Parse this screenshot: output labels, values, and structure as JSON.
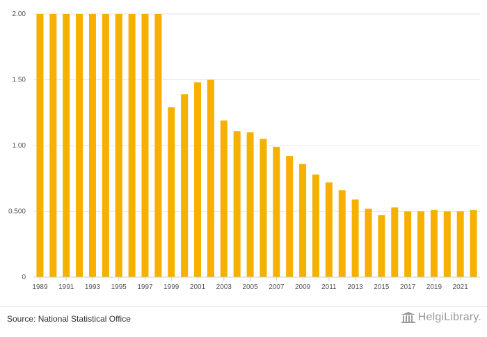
{
  "chart_data": {
    "type": "bar",
    "title": "",
    "xlabel": "",
    "ylabel": "",
    "ylim": [
      0,
      2.0
    ],
    "grid": true,
    "bar_color": "#f5b000",
    "yticks": [
      "0",
      "0.500",
      "1.00",
      "1.50",
      "2.00"
    ],
    "ytick_values": [
      0,
      0.5,
      1.0,
      1.5,
      2.0
    ],
    "xtick_labels": [
      "1989",
      "1991",
      "1993",
      "1995",
      "1997",
      "1999",
      "2001",
      "2003",
      "2005",
      "2007",
      "2009",
      "2011",
      "2013",
      "2015",
      "2017",
      "2019",
      "2021"
    ],
    "categories": [
      "1989",
      "1990",
      "1991",
      "1992",
      "1993",
      "1994",
      "1995",
      "1996",
      "1997",
      "1998",
      "1999",
      "2000",
      "2001",
      "2002",
      "2003",
      "2004",
      "2005",
      "2006",
      "2007",
      "2008",
      "2009",
      "2010",
      "2011",
      "2012",
      "2013",
      "2014",
      "2015",
      "2016",
      "2017",
      "2018",
      "2019",
      "2020",
      "2021",
      "2022"
    ],
    "values": [
      2.0,
      2.0,
      2.0,
      2.0,
      2.0,
      2.0,
      2.0,
      2.0,
      2.0,
      2.0,
      1.29,
      1.39,
      1.48,
      1.5,
      1.19,
      1.11,
      1.1,
      1.05,
      0.99,
      0.92,
      0.86,
      0.78,
      0.72,
      0.66,
      0.59,
      0.52,
      0.47,
      0.53,
      0.5,
      0.5,
      0.51,
      0.5,
      0.5,
      0.51
    ]
  },
  "footer": {
    "source": "Source: National Statistical Office",
    "logo_text": "HelgiLibrary."
  }
}
